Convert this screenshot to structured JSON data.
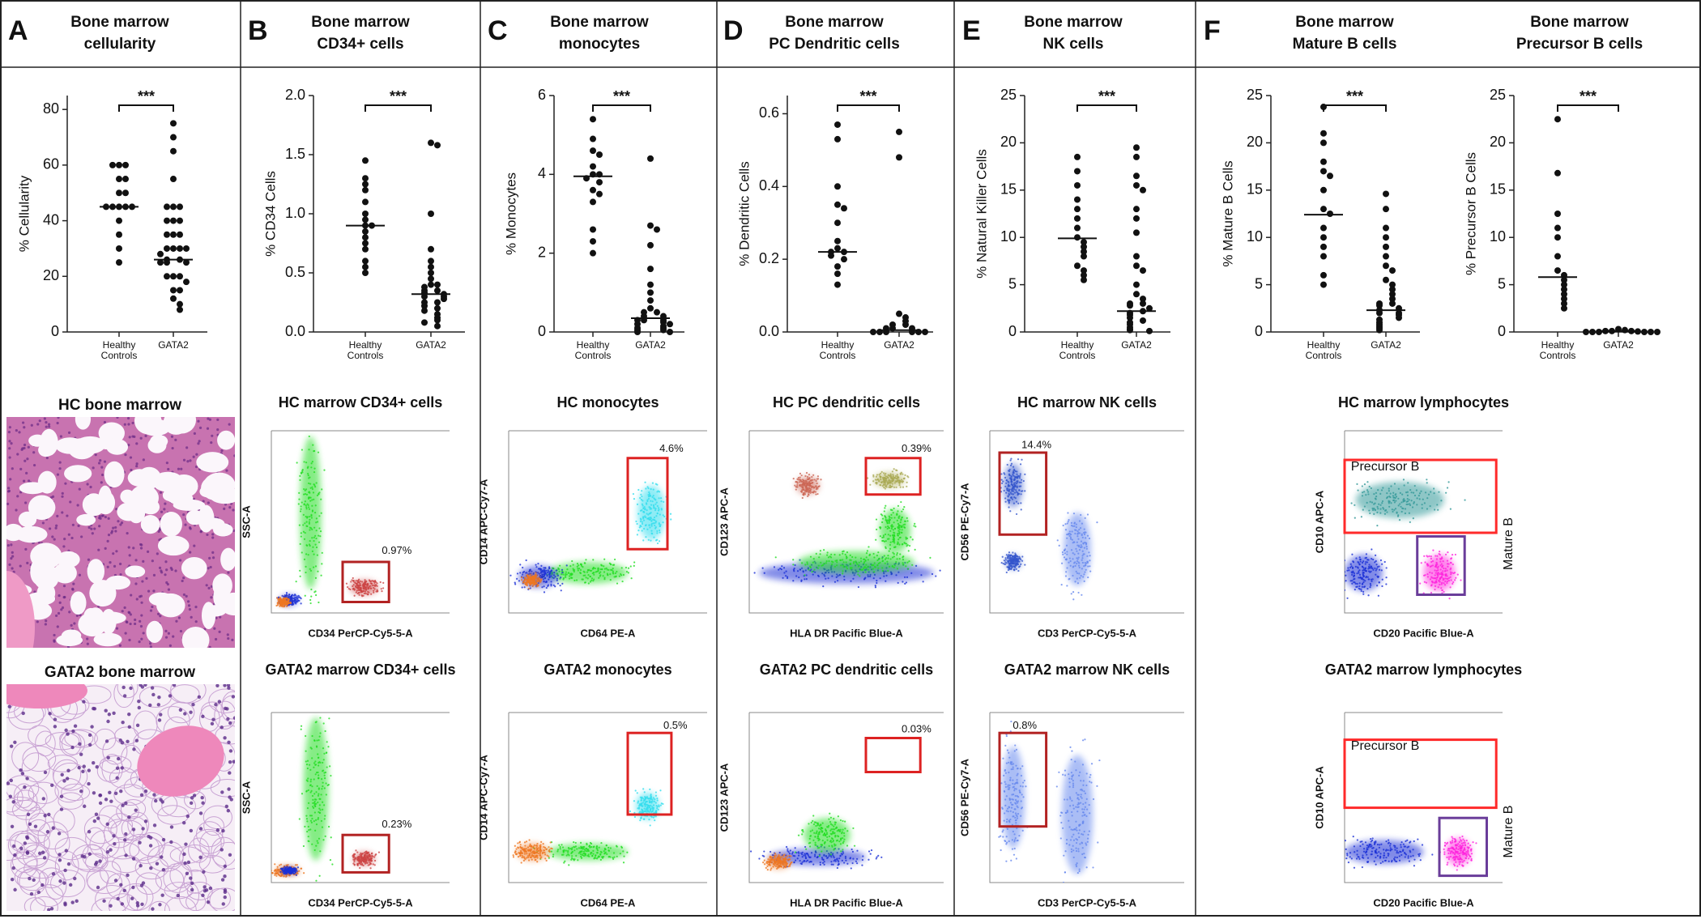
{
  "panel_labels": [
    "A",
    "B",
    "C",
    "D",
    "E",
    "F"
  ],
  "chart_data": [
    {
      "type": "strip",
      "title": [
        "Bone marrow",
        "cellularity"
      ],
      "ylabel": "% Cellularity",
      "categories": [
        "Healthy Controls",
        "GATA2"
      ],
      "significance": "***",
      "series": [
        {
          "values": [
            60,
            60,
            60,
            55,
            55,
            50,
            50,
            45,
            45,
            45,
            45,
            45,
            40,
            35,
            30,
            25
          ],
          "median": 45
        },
        {
          "values": [
            75,
            70,
            65,
            55,
            45,
            45,
            45,
            40,
            40,
            40,
            35,
            35,
            35,
            30,
            30,
            30,
            30,
            28,
            26,
            26,
            25,
            25,
            25,
            20,
            20,
            20,
            18,
            15,
            15,
            12,
            10,
            8
          ],
          "median": 26
        }
      ],
      "ylim": [
        0,
        85
      ],
      "yticks": [
        0,
        20,
        40,
        60,
        80
      ]
    },
    {
      "type": "strip",
      "title": [
        "Bone marrow",
        "CD34+ cells"
      ],
      "ylabel": "% CD34 Cells",
      "categories": [
        "Healthy Controls",
        "GATA2"
      ],
      "significance": "***",
      "series": [
        {
          "values": [
            1.45,
            1.3,
            1.25,
            1.2,
            1.1,
            1.0,
            0.95,
            0.9,
            0.9,
            0.85,
            0.8,
            0.75,
            0.7,
            0.6,
            0.55,
            0.5
          ],
          "median": 0.9
        },
        {
          "values": [
            1.6,
            1.58,
            1.0,
            0.7,
            0.6,
            0.55,
            0.5,
            0.45,
            0.4,
            0.4,
            0.38,
            0.35,
            0.35,
            0.33,
            0.32,
            0.3,
            0.3,
            0.28,
            0.25,
            0.25,
            0.22,
            0.2,
            0.18,
            0.15,
            0.12,
            0.1,
            0.08,
            0.05
          ],
          "median": 0.32
        }
      ],
      "ylim": [
        0,
        2
      ],
      "yticks": [
        {
          "value": 0,
          "label": "0.0"
        },
        0.5,
        {
          "value": 1,
          "label": "1.0"
        },
        1.5,
        {
          "value": 2,
          "label": "2.0"
        }
      ]
    },
    {
      "type": "strip",
      "title": [
        "Bone marrow",
        "monocytes"
      ],
      "ylabel": "% Monocytes",
      "categories": [
        "Healthy Controls",
        "GATA2"
      ],
      "significance": "***",
      "series": [
        {
          "values": [
            5.4,
            4.9,
            4.6,
            4.5,
            4.2,
            4.0,
            4.0,
            3.9,
            3.8,
            3.6,
            3.5,
            3.3,
            2.6,
            2.3,
            2.0
          ],
          "median": 3.95
        },
        {
          "values": [
            4.4,
            2.7,
            2.6,
            2.2,
            1.6,
            1.2,
            1.0,
            0.8,
            0.6,
            0.5,
            0.5,
            0.4,
            0.4,
            0.3,
            0.3,
            0.3,
            0.25,
            0.2,
            0.2,
            0.15,
            0.1,
            0.1,
            0.05,
            0.05,
            0,
            0
          ],
          "median": 0.35
        }
      ],
      "ylim": [
        0,
        6
      ],
      "yticks": [
        0,
        2,
        4,
        6
      ]
    },
    {
      "type": "strip",
      "title": [
        "Bone marrow",
        "PC Dendritic cells"
      ],
      "ylabel": "% Dendritic Cells",
      "categories": [
        "Healthy Controls",
        "GATA2"
      ],
      "significance": "***",
      "series": [
        {
          "values": [
            0.57,
            0.53,
            0.4,
            0.35,
            0.34,
            0.3,
            0.25,
            0.23,
            0.22,
            0.22,
            0.21,
            0.2,
            0.18,
            0.16,
            0.13
          ],
          "median": 0.22
        },
        {
          "values": [
            0.55,
            0.48,
            0.05,
            0.04,
            0.03,
            0.02,
            0.02,
            0.01,
            0.01,
            0.01,
            0,
            0,
            0,
            0,
            0,
            0
          ],
          "median": 0.005
        }
      ],
      "ylim": [
        0,
        0.65
      ],
      "yticks": [
        {
          "value": 0,
          "label": "0.0"
        },
        0.2,
        0.4,
        0.6
      ]
    },
    {
      "type": "strip",
      "title": [
        "Bone marrow",
        "NK cells"
      ],
      "ylabel": "% Natural Killer Cells",
      "categories": [
        "Healthy Controls",
        "GATA2"
      ],
      "significance": "***",
      "series": [
        {
          "values": [
            18.5,
            17,
            15.5,
            14,
            13,
            12,
            11,
            10,
            9.5,
            9,
            8.5,
            8,
            7,
            6.5,
            6,
            5.5
          ],
          "median": 9.9
        },
        {
          "values": [
            19.5,
            18.5,
            16.5,
            15.5,
            15,
            13,
            12,
            10.5,
            8,
            7,
            6.5,
            5,
            4,
            3.5,
            3,
            3,
            2.8,
            2.5,
            2.2,
            2,
            1.8,
            1.5,
            1.2,
            1,
            0.8,
            0.5,
            0.3,
            0.2,
            0.1
          ],
          "median": 2.2
        }
      ],
      "ylim": [
        0,
        25
      ],
      "yticks": [
        0,
        5,
        10,
        15,
        20,
        25
      ]
    },
    {
      "type": "strip",
      "title": [
        "Bone marrow",
        "Mature B cells"
      ],
      "ylabel": "% Mature B Cells",
      "categories": [
        "Healthy Controls",
        "GATA2"
      ],
      "significance": "***",
      "series": [
        {
          "values": [
            23.8,
            21,
            20,
            18,
            17,
            16.5,
            15,
            13,
            12.5,
            11,
            10,
            9,
            8,
            6,
            5
          ],
          "median": 12.4
        },
        {
          "values": [
            14.6,
            13,
            11,
            10,
            9,
            8,
            7,
            6.5,
            5.5,
            5,
            4.5,
            4,
            3.5,
            3,
            3,
            2.8,
            2.5,
            2.3,
            2,
            2,
            1.8,
            1.5,
            1.3,
            1,
            0.8,
            0.6,
            0.4,
            0.2
          ],
          "median": 2.3
        }
      ],
      "ylim": [
        0,
        25
      ],
      "yticks": [
        0,
        5,
        10,
        15,
        20,
        25
      ]
    },
    {
      "type": "strip",
      "title": [
        "Bone marrow",
        "Precursor B cells"
      ],
      "ylabel": "% Precursor B Cells",
      "categories": [
        "Healthy Controls",
        "GATA2"
      ],
      "significance": "***",
      "series": [
        {
          "values": [
            22.5,
            16.8,
            12.5,
            11,
            10,
            8,
            6.5,
            6,
            5.5,
            5,
            4.5,
            4,
            3.5,
            3,
            2.5
          ],
          "median": 5.8
        },
        {
          "values": [
            0.3,
            0.2,
            0.1,
            0.1,
            0.1,
            0.05,
            0,
            0,
            0,
            0,
            0,
            0
          ],
          "median": 0.1
        }
      ],
      "ylim": [
        0,
        25
      ],
      "yticks": [
        0,
        5,
        10,
        15,
        20,
        25
      ]
    }
  ],
  "histology": [
    {
      "title": "HC bone marrow"
    },
    {
      "title": "GATA2 bone marrow"
    }
  ],
  "flow_panels": [
    {
      "title": "HC marrow CD34+ cells",
      "x_label": "CD34 PerCP-Cy5-5-A",
      "y_label": "SSC-A",
      "gates": [
        "0.97%"
      ]
    },
    {
      "title": "GATA2 marrow CD34+ cells",
      "x_label": "CD34 PerCP-Cy5-5-A",
      "y_label": "SSC-A",
      "gates": [
        "0.23%"
      ]
    },
    {
      "title": "HC monocytes",
      "x_label": "CD64 PE-A",
      "y_label": "CD14 APC-Cy7-A",
      "gates": [
        "4.6%"
      ]
    },
    {
      "title": "GATA2 monocytes",
      "x_label": "CD64 PE-A",
      "y_label": "CD14 APC-Cy7-A",
      "gates": [
        "0.5%"
      ]
    },
    {
      "title": "HC PC dendritic cells",
      "x_label": "HLA DR Pacific Blue-A",
      "y_label": "CD123 APC-A",
      "gates": [
        "0.39%"
      ]
    },
    {
      "title": "GATA2 PC dendritic cells",
      "x_label": "HLA DR Pacific Blue-A",
      "y_label": "CD123 APC-A",
      "gates": [
        "0.03%"
      ]
    },
    {
      "title": "HC marrow NK cells",
      "x_label": "CD3 PerCP-Cy5-5-A",
      "y_label": "CD56 PE-Cy7-A",
      "gates": [
        "14.4%"
      ]
    },
    {
      "title": "GATA2 marrow NK cells",
      "x_label": "CD3 PerCP-Cy5-5-A",
      "y_label": "CD56 PE-Cy7-A",
      "gates": [
        "0.8%"
      ]
    },
    {
      "title": "HC marrow lymphocytes",
      "x_label": "CD20 Pacific Blue-A",
      "y_label": "CD10 APC-A",
      "gates": [
        "Precursor B",
        "Mature B"
      ]
    },
    {
      "title": "GATA2 marrow lymphocytes",
      "x_label": "CD20 Pacific Blue-A",
      "y_label": "CD10 APC-A",
      "gates": [
        "Precursor B",
        "Mature B"
      ]
    }
  ]
}
